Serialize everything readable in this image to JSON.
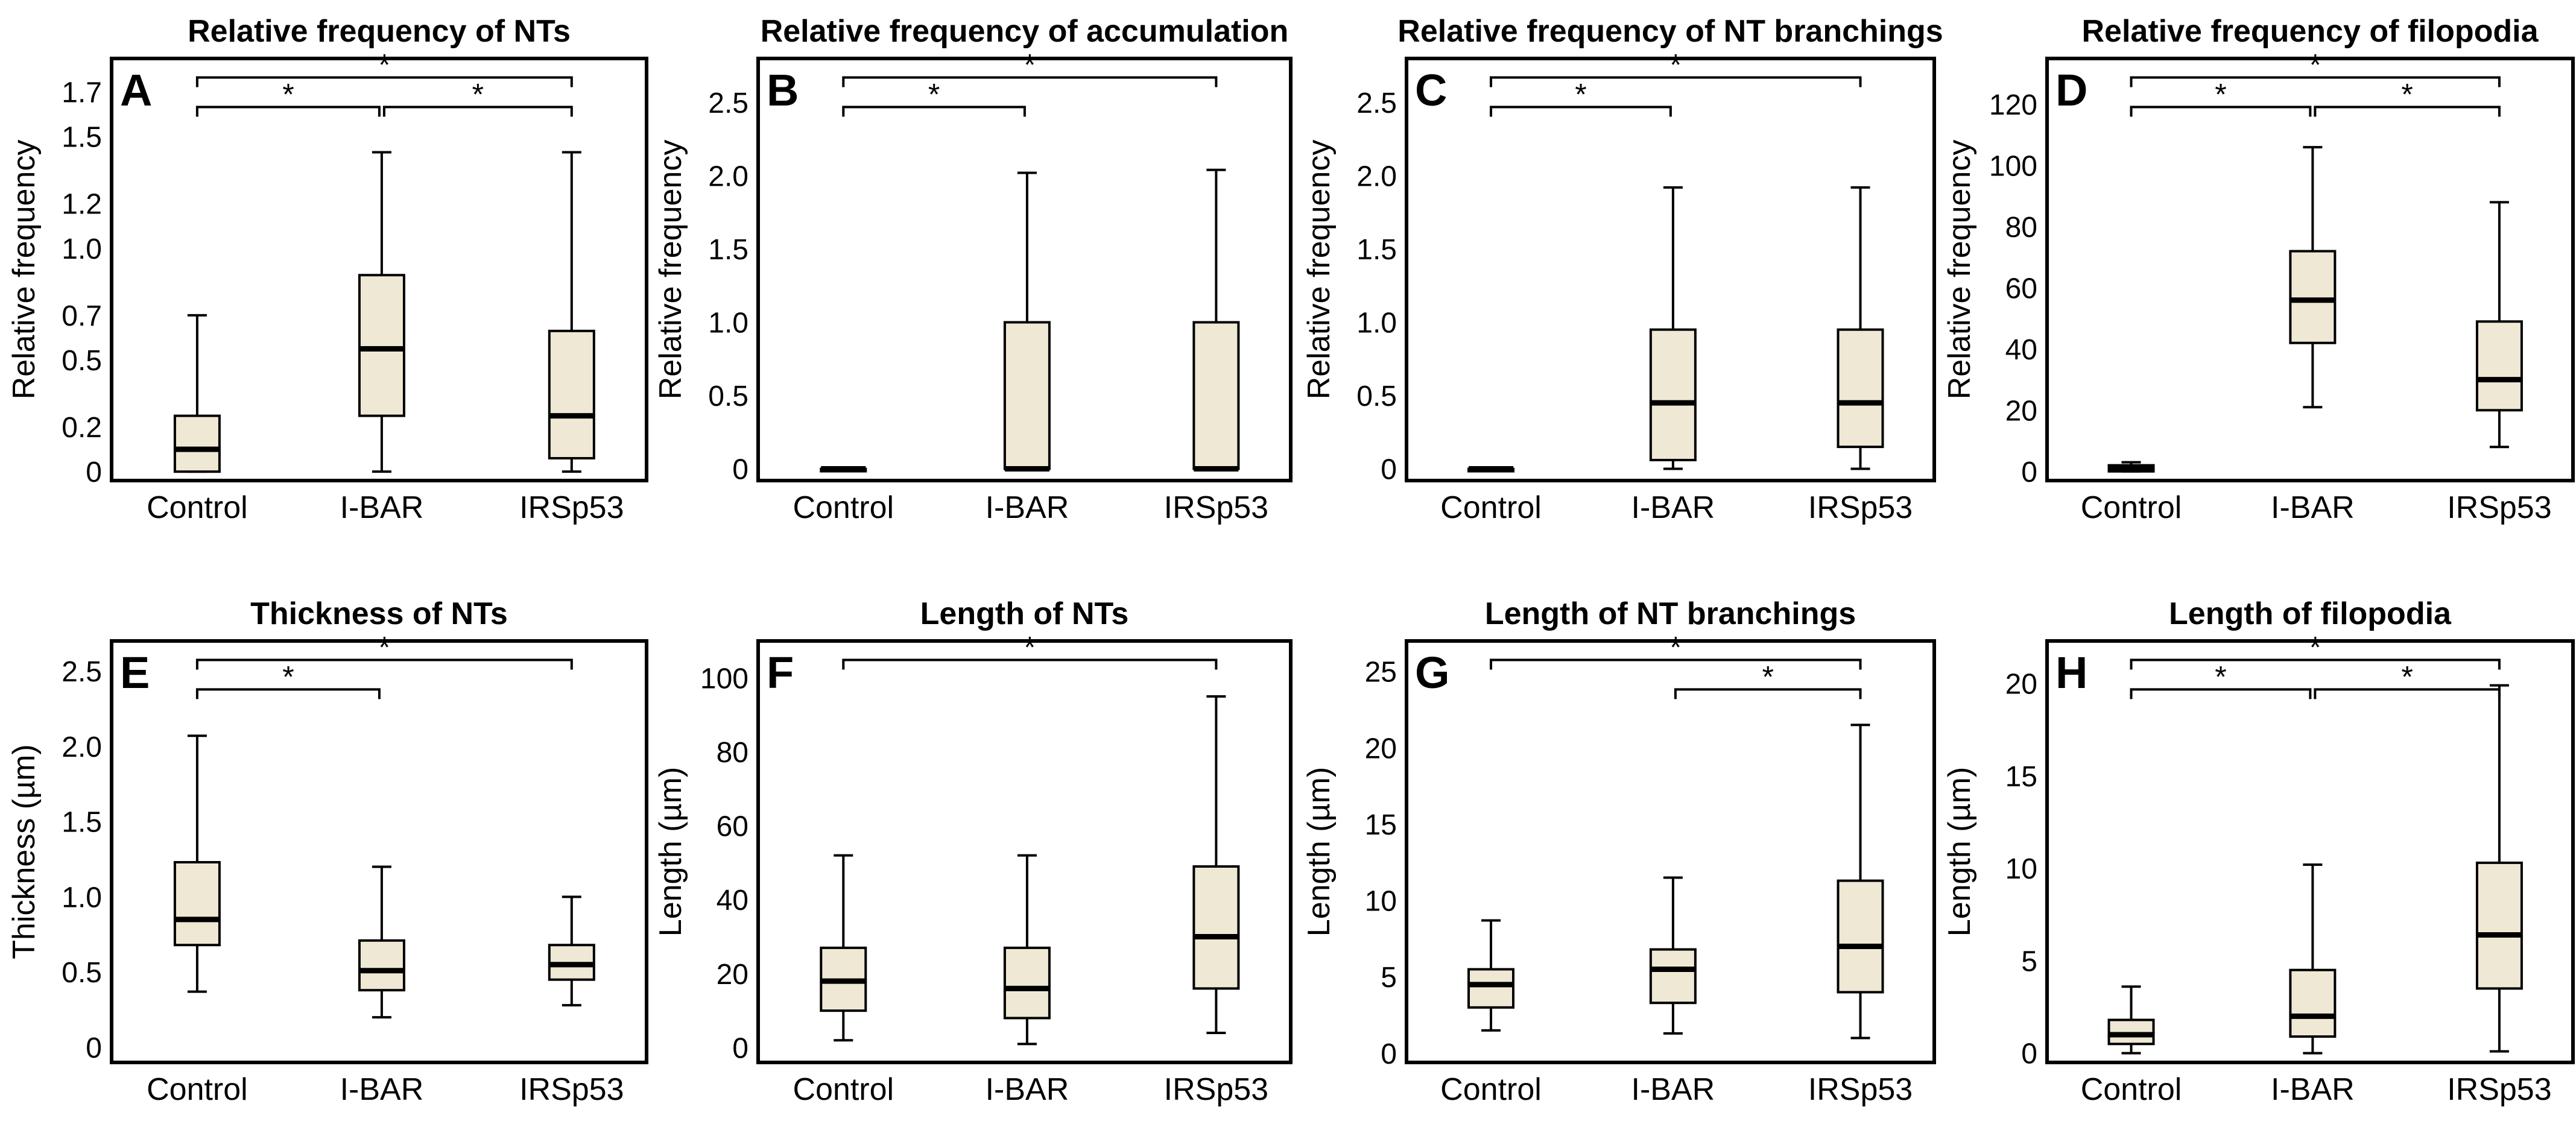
{
  "figure": {
    "box_fill": "#efe8d4",
    "stroke": "#000000"
  },
  "chart_data": [
    {
      "panel": "A",
      "type": "box",
      "title": "Relative frequency of NTs",
      "ylabel": "Relative frequency",
      "categories": [
        "Control",
        "I-BAR",
        "IRSp53"
      ],
      "yticks": [
        "0",
        "0.2",
        "0.5",
        "0.7",
        "1.0",
        "1.2",
        "1.5",
        "1.7"
      ],
      "ylim": [
        -0.04,
        1.85
      ],
      "boxes": [
        {
          "min": 0,
          "q1": 0,
          "median": 0.1,
          "q3": 0.25,
          "max": 0.7
        },
        {
          "min": 0,
          "q1": 0.25,
          "median": 0.55,
          "q3": 0.88,
          "max": 1.43
        },
        {
          "min": 0,
          "q1": 0.06,
          "median": 0.25,
          "q3": 0.63,
          "max": 1.43
        }
      ],
      "significance": [
        {
          "from": 0,
          "to": 2,
          "label": "*"
        },
        {
          "from": 0,
          "to": 1,
          "label": "*"
        },
        {
          "from": 1,
          "to": 2,
          "label": "*"
        }
      ]
    },
    {
      "panel": "B",
      "type": "box",
      "title": "Relative frequency of accumulation",
      "ylabel": "Relative frequency",
      "categories": [
        "Control",
        "I-BAR",
        "IRSp53"
      ],
      "yticks": [
        "0",
        "0.5",
        "1.0",
        "1.5",
        "2.0",
        "2.5"
      ],
      "ylim": [
        -0.08,
        2.8
      ],
      "boxes": [
        {
          "min": 0,
          "q1": 0,
          "median": 0,
          "q3": 0,
          "max": 0
        },
        {
          "min": 0,
          "q1": 0,
          "median": 0,
          "q3": 1.0,
          "max": 2.02
        },
        {
          "min": 0,
          "q1": 0,
          "median": 0,
          "q3": 1.0,
          "max": 2.04
        }
      ],
      "significance": [
        {
          "from": 0,
          "to": 2,
          "label": "*"
        },
        {
          "from": 0,
          "to": 1,
          "label": "*"
        }
      ]
    },
    {
      "panel": "C",
      "type": "box",
      "title": "Relative frequency of NT branchings",
      "ylabel": "Relative frequency",
      "categories": [
        "Control",
        "I-BAR",
        "IRSp53"
      ],
      "yticks": [
        "0",
        "0.5",
        "1.0",
        "1.5",
        "2.0",
        "2.5"
      ],
      "ylim": [
        -0.08,
        2.8
      ],
      "boxes": [
        {
          "min": 0,
          "q1": 0,
          "median": 0,
          "q3": 0,
          "max": 0
        },
        {
          "min": 0,
          "q1": 0.06,
          "median": 0.45,
          "q3": 0.95,
          "max": 1.92
        },
        {
          "min": 0,
          "q1": 0.15,
          "median": 0.45,
          "q3": 0.95,
          "max": 1.92
        }
      ],
      "significance": [
        {
          "from": 0,
          "to": 2,
          "label": "*"
        },
        {
          "from": 0,
          "to": 1,
          "label": "*"
        }
      ]
    },
    {
      "panel": "D",
      "type": "box",
      "title": "Relative frequency of filopodia",
      "ylabel": "Relative frequency",
      "categories": [
        "Control",
        "I-BAR",
        "IRSp53"
      ],
      "yticks": [
        "0",
        "20",
        "40",
        "60",
        "80",
        "100",
        "120"
      ],
      "ylim": [
        -3,
        135
      ],
      "boxes": [
        {
          "min": 0,
          "q1": 0,
          "median": 1,
          "q3": 2,
          "max": 3
        },
        {
          "min": 21,
          "q1": 42,
          "median": 56,
          "q3": 72,
          "max": 106
        },
        {
          "min": 8,
          "q1": 20,
          "median": 30,
          "q3": 49,
          "max": 88
        }
      ],
      "significance": [
        {
          "from": 0,
          "to": 2,
          "label": "*"
        },
        {
          "from": 0,
          "to": 1,
          "label": "*"
        },
        {
          "from": 1,
          "to": 2,
          "label": "*"
        }
      ]
    },
    {
      "panel": "E",
      "type": "box",
      "title": "Thickness of NTs",
      "ylabel": "Thickness (µm)",
      "categories": [
        "Control",
        "I-BAR",
        "IRSp53"
      ],
      "yticks": [
        "0",
        "0.5",
        "1.0",
        "1.5",
        "2.0",
        "2.5"
      ],
      "ylim": [
        -0.1,
        2.7
      ],
      "boxes": [
        {
          "min": 0.37,
          "q1": 0.68,
          "median": 0.85,
          "q3": 1.23,
          "max": 2.07
        },
        {
          "min": 0.2,
          "q1": 0.38,
          "median": 0.51,
          "q3": 0.71,
          "max": 1.2
        },
        {
          "min": 0.28,
          "q1": 0.45,
          "median": 0.55,
          "q3": 0.68,
          "max": 1.0
        }
      ],
      "significance": [
        {
          "from": 0,
          "to": 2,
          "label": "*"
        },
        {
          "from": 0,
          "to": 1,
          "label": "*"
        }
      ]
    },
    {
      "panel": "F",
      "type": "box",
      "title": "Length of NTs",
      "ylabel": "Length (µm)",
      "categories": [
        "Control",
        "I-BAR",
        "IRSp53"
      ],
      "yticks": [
        "0",
        "20",
        "40",
        "60",
        "80",
        "100"
      ],
      "ylim": [
        -4,
        110
      ],
      "boxes": [
        {
          "min": 2,
          "q1": 10,
          "median": 18,
          "q3": 27,
          "max": 52
        },
        {
          "min": 1,
          "q1": 8,
          "median": 16,
          "q3": 27,
          "max": 52
        },
        {
          "min": 4,
          "q1": 16,
          "median": 30,
          "q3": 49,
          "max": 95
        }
      ],
      "significance": [
        {
          "from": 0,
          "to": 2,
          "label": "*"
        }
      ]
    },
    {
      "panel": "G",
      "type": "box",
      "title": "Length of NT branchings",
      "ylabel": "Length (µm)",
      "categories": [
        "Control",
        "I-BAR",
        "IRSp53"
      ],
      "yticks": [
        "0",
        "5",
        "10",
        "15",
        "20",
        "25"
      ],
      "ylim": [
        -0.6,
        27
      ],
      "boxes": [
        {
          "min": 1.5,
          "q1": 3,
          "median": 4.5,
          "q3": 5.5,
          "max": 8.7
        },
        {
          "min": 1.3,
          "q1": 3.3,
          "median": 5.5,
          "q3": 6.8,
          "max": 11.5
        },
        {
          "min": 1,
          "q1": 4,
          "median": 7,
          "q3": 11.3,
          "max": 21.5
        }
      ],
      "significance": [
        {
          "from": 0,
          "to": 2,
          "label": "*"
        },
        {
          "from": 1,
          "to": 2,
          "label": "*"
        }
      ]
    },
    {
      "panel": "H",
      "type": "box",
      "title": "Length of filopodia",
      "ylabel": "Length (µm)",
      "categories": [
        "Control",
        "I-BAR",
        "IRSp53"
      ],
      "yticks": [
        "0",
        "5",
        "10",
        "15",
        "20"
      ],
      "ylim": [
        -0.5,
        22.3
      ],
      "boxes": [
        {
          "min": 0,
          "q1": 0.5,
          "median": 1,
          "q3": 1.8,
          "max": 3.6
        },
        {
          "min": 0,
          "q1": 0.9,
          "median": 2,
          "q3": 4.5,
          "max": 10.2
        },
        {
          "min": 0.1,
          "q1": 3.5,
          "median": 6.4,
          "q3": 10.3,
          "max": 19.9
        }
      ],
      "significance": [
        {
          "from": 0,
          "to": 2,
          "label": "*"
        },
        {
          "from": 0,
          "to": 1,
          "label": "*"
        },
        {
          "from": 1,
          "to": 2,
          "label": "*"
        }
      ]
    }
  ]
}
